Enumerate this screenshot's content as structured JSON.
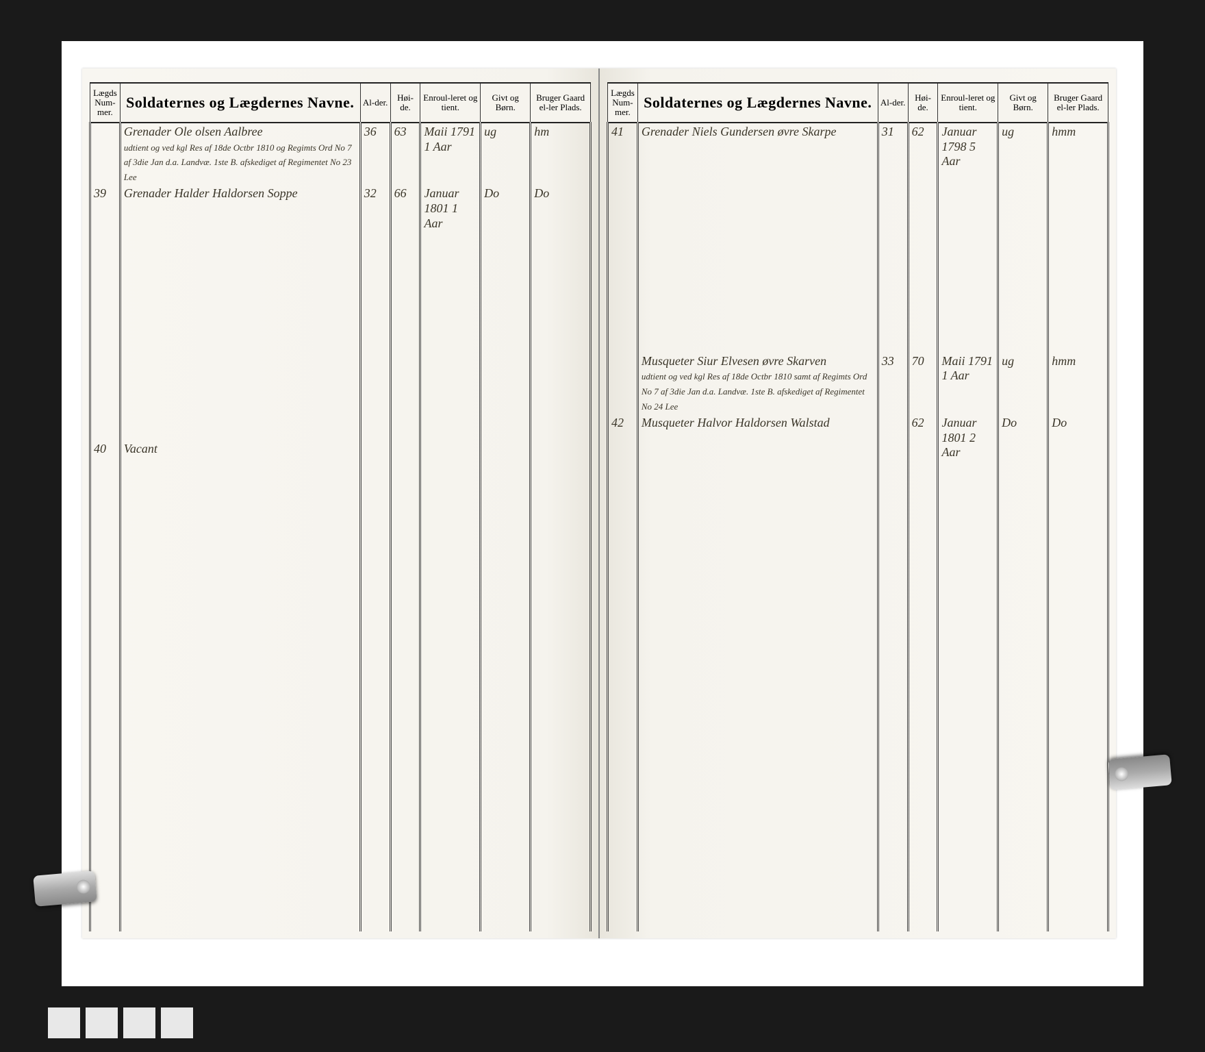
{
  "document": {
    "type": "ledger",
    "language": "Danish/Norwegian",
    "description": "Military conscription roll (Lægdsrulle)",
    "background_color": "#1a1a1a",
    "paper_color": "#f7f5f0",
    "ink_color": "#3a3528"
  },
  "headers": {
    "col1": "Lægds Num-mer.",
    "col2": "Soldaternes og Lægdernes Navne.",
    "col3": "Al-der.",
    "col4": "Høi-de.",
    "col5": "Enroul-leret og tient.",
    "col6": "Givt og Børn.",
    "col7": "Bruger Gaard el-ler Plads."
  },
  "left_page": {
    "rows": [
      {
        "num": "",
        "name": "Grenader Ole olsen Aalbree",
        "sub": "udtient og ved kgl Res af 18de Octbr 1810 og Regimts Ord No 7 af 3die Jan d.a. Landvæ. 1ste B. afskediget af Regimentet No 23 Lee",
        "alder": "36",
        "hoide": "63",
        "enroul": "Maii 1791 1 Aar",
        "givt": "ug",
        "bruger": "hm"
      },
      {
        "num": "39",
        "name": "Grenader Halder Haldorsen Soppe",
        "sub": "",
        "alder": "32",
        "hoide": "66",
        "enroul": "Januar 1801 1 Aar",
        "givt": "Do",
        "bruger": "Do"
      },
      {
        "num": "40",
        "name": "Vacant",
        "sub": "",
        "alder": "",
        "hoide": "",
        "enroul": "",
        "givt": "",
        "bruger": ""
      }
    ]
  },
  "right_page": {
    "rows": [
      {
        "num": "41",
        "name": "Grenader Niels Gundersen øvre Skarpe",
        "sub": "",
        "alder": "31",
        "hoide": "62",
        "enroul": "Januar 1798 5 Aar",
        "givt": "ug",
        "bruger": "hmm"
      },
      {
        "num": "",
        "name": "Musqueter Siur Elvesen øvre Skarven",
        "sub": "udtient og ved kgl Res af 18de Octbr 1810 samt af Regimts Ord No 7 af 3die Jan d.a. Landvæ. 1ste B. afskediget af Regimentet No 24 Lee",
        "alder": "33",
        "hoide": "70",
        "enroul": "Maii 1791 1 Aar",
        "givt": "ug",
        "bruger": "hmm"
      },
      {
        "num": "42",
        "name": "Musqueter Halvor Haldorsen Walstad",
        "sub": "",
        "alder": "",
        "hoide": "62",
        "enroul": "Januar 1801 2 Aar",
        "givt": "Do",
        "bruger": "Do"
      }
    ]
  }
}
